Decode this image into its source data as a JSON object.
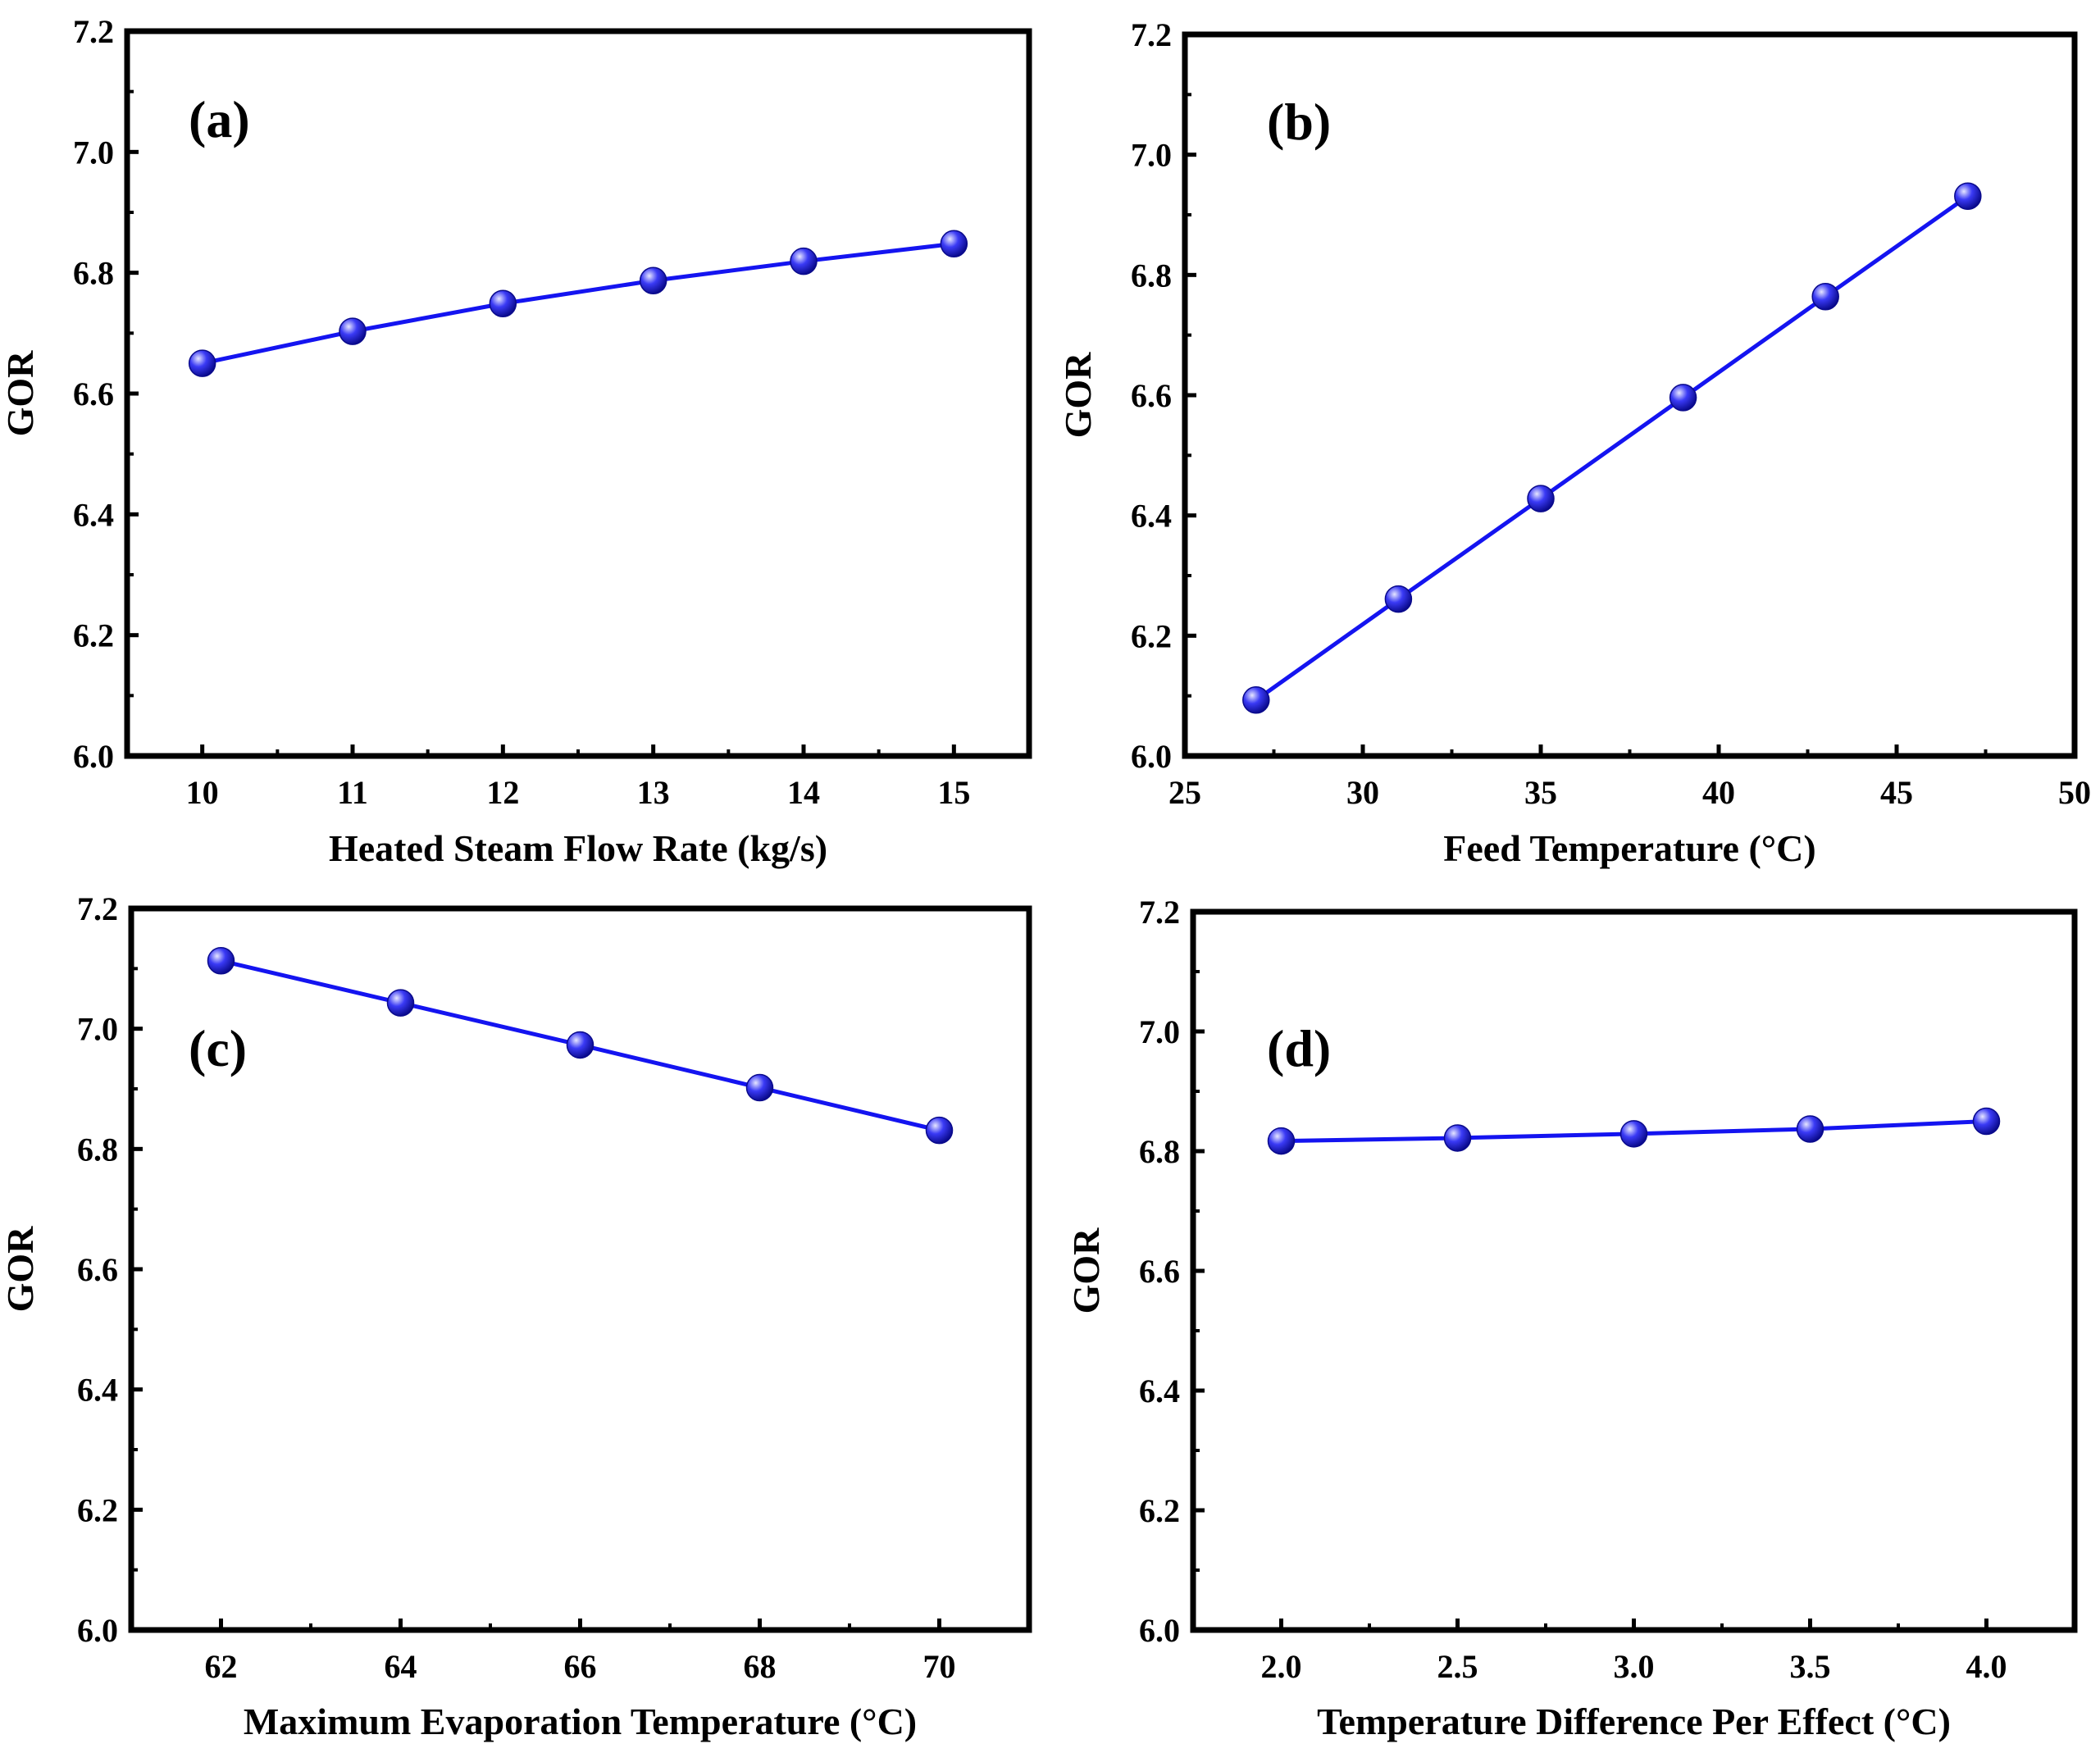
{
  "chart_data": [
    {
      "type": "line",
      "panel_label": "(a)",
      "xlabel": "Heated Steam Flow Rate (kg/s)",
      "ylabel": "GOR",
      "xlim": [
        9.5,
        15.5
      ],
      "ylim": [
        6.0,
        7.2
      ],
      "xticks": [
        10,
        11,
        12,
        13,
        14,
        15
      ],
      "xtick_labels": [
        "10",
        "11",
        "12",
        "13",
        "14",
        "15"
      ],
      "yticks": [
        6.0,
        6.2,
        6.4,
        6.6,
        6.8,
        7.0,
        7.2
      ],
      "ytick_labels": [
        "6.0",
        "6.2",
        "6.4",
        "6.6",
        "6.8",
        "7.0",
        "7.2"
      ],
      "x": [
        10,
        11,
        12,
        13,
        14,
        15
      ],
      "y": [
        6.65,
        6.703,
        6.749,
        6.787,
        6.819,
        6.848
      ]
    },
    {
      "type": "line",
      "panel_label": "(b)",
      "xlabel": "Feed Temperature (°C)",
      "ylabel": "GOR",
      "xlim": [
        25,
        50
      ],
      "ylim": [
        6.0,
        7.2
      ],
      "xticks": [
        25,
        30,
        35,
        40,
        45,
        50
      ],
      "xtick_labels": [
        "25",
        "30",
        "35",
        "40",
        "45",
        "50"
      ],
      "yticks": [
        6.0,
        6.2,
        6.4,
        6.6,
        6.8,
        7.0,
        7.2
      ],
      "ytick_labels": [
        "6.0",
        "6.2",
        "6.4",
        "6.6",
        "6.8",
        "7.0",
        "7.2"
      ],
      "x": [
        27,
        31,
        35,
        39,
        43,
        47
      ],
      "y": [
        6.093,
        6.261,
        6.428,
        6.596,
        6.764,
        6.931
      ]
    },
    {
      "type": "line",
      "panel_label": "(c)",
      "xlabel": "Maximum Evaporation Temperature (°C)",
      "ylabel": "GOR",
      "xlim": [
        61,
        71
      ],
      "ylim": [
        6.0,
        7.2
      ],
      "xticks": [
        62,
        64,
        66,
        68,
        70
      ],
      "xtick_labels": [
        "62",
        "64",
        "66",
        "68",
        "70"
      ],
      "yticks": [
        6.0,
        6.2,
        6.4,
        6.6,
        6.8,
        7.0,
        7.2
      ],
      "ytick_labels": [
        "6.0",
        "6.2",
        "6.4",
        "6.6",
        "6.8",
        "7.0",
        "7.2"
      ],
      "x": [
        62,
        64,
        66,
        68,
        70
      ],
      "y": [
        7.113,
        7.043,
        6.973,
        6.902,
        6.831
      ]
    },
    {
      "type": "line",
      "panel_label": "(d)",
      "xlabel": "Temperature Difference Per Effect (°C)",
      "ylabel": "GOR",
      "xlim": [
        1.75,
        4.25
      ],
      "ylim": [
        6.0,
        7.2
      ],
      "xticks": [
        2.0,
        2.5,
        3.0,
        3.5,
        4.0
      ],
      "xtick_labels": [
        "2.0",
        "2.5",
        "3.0",
        "3.5",
        "4.0"
      ],
      "yticks": [
        6.0,
        6.2,
        6.4,
        6.6,
        6.8,
        7.0,
        7.2
      ],
      "ytick_labels": [
        "6.0",
        "6.2",
        "6.4",
        "6.6",
        "6.8",
        "7.0",
        "7.2"
      ],
      "x": [
        2.0,
        2.5,
        3.0,
        3.5,
        4.0
      ],
      "y": [
        6.817,
        6.822,
        6.829,
        6.837,
        6.85
      ]
    }
  ],
  "style": {
    "line_color": "#1414f0",
    "marker_light": "#e6e6ff",
    "marker_mid": "#3a3af5",
    "marker_dark": "#0a0a8c",
    "axis_color": "#000000"
  }
}
